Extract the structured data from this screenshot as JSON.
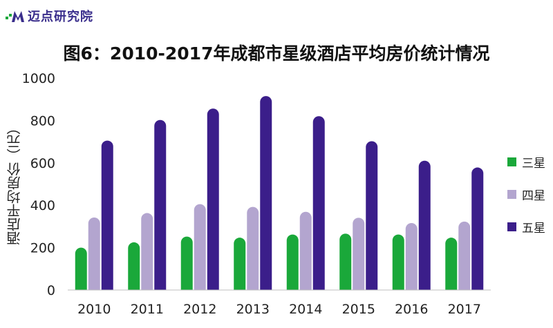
{
  "logo": {
    "text": "迈点研究院",
    "mark_icon": "M-logo-icon"
  },
  "chart_data": {
    "type": "bar",
    "title": "图6：2010-2017年成都市星级酒店平均房价统计情况",
    "ylabel": "酒店平均房价（元）",
    "xlabel": "",
    "ylim": [
      0,
      1000
    ],
    "yticks": [
      "0",
      "200",
      "400",
      "600",
      "800",
      "1000"
    ],
    "categories": [
      "2010",
      "2011",
      "2012",
      "2013",
      "2014",
      "2015",
      "2016",
      "2017"
    ],
    "series": [
      {
        "name": "三星",
        "color": "#1aa83a",
        "values": [
          200,
          225,
          252,
          247,
          262,
          266,
          262,
          247
        ]
      },
      {
        "name": "四星",
        "color": "#b3a5cf",
        "values": [
          342,
          363,
          405,
          392,
          369,
          341,
          316,
          323
        ]
      },
      {
        "name": "五星",
        "color": "#3b1e8a",
        "values": [
          705,
          802,
          856,
          915,
          820,
          702,
          610,
          578
        ]
      }
    ],
    "legend_position": "right",
    "grid": false
  }
}
